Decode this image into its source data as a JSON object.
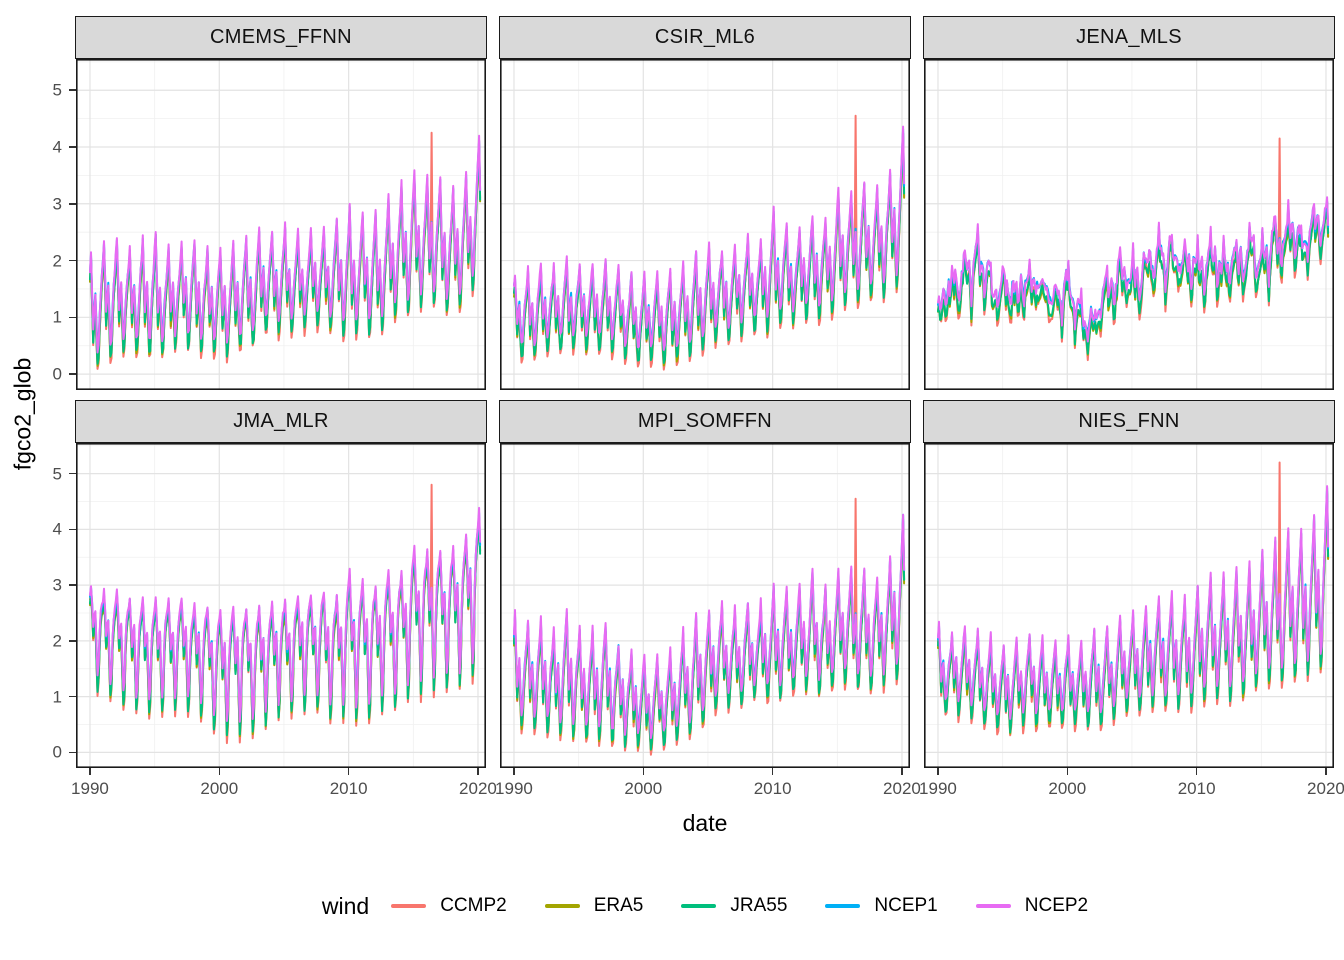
{
  "figure": {
    "y_axis_title": "fgco2_glob",
    "x_axis_title": "date",
    "legend_title": "wind"
  },
  "axes": {
    "x_ticks": [
      1990,
      2000,
      2010,
      2020
    ],
    "x_minor": [
      1995,
      2005,
      2015
    ],
    "y_ticks": [
      0,
      1,
      2,
      3,
      4,
      5
    ],
    "y_minor": [
      0.5,
      1.5,
      2.5,
      3.5,
      4.5,
      5.5
    ],
    "x_range": [
      1988.92,
      2020.62
    ],
    "y_range": [
      -0.28,
      5.55
    ]
  },
  "colors": {
    "background": "#FFFFFF",
    "panel_background": "#FFFFFF",
    "grid_major": "#E3E3E3",
    "grid_minor": "#F0F0F0",
    "panel_border": "#1A1A1A",
    "strip_fill": "#D9D9D9",
    "tick_text": "#4D4D4D",
    "axis_title_text": "#000000"
  },
  "legend": {
    "items": [
      {
        "label": "CCMP2",
        "color": "#F8766D"
      },
      {
        "label": "ERA5",
        "color": "#A3A500"
      },
      {
        "label": "JRA55",
        "color": "#00BF7D"
      },
      {
        "label": "NCEP1",
        "color": "#00B0F6"
      },
      {
        "label": "NCEP2",
        "color": "#E76BF3"
      }
    ]
  },
  "chart_data": {
    "type": "line",
    "x_unit": "year, monthly resolution 1990-2020",
    "years": [
      1990,
      1991,
      1992,
      1993,
      1994,
      1995,
      1996,
      1997,
      1998,
      1999,
      2000,
      2001,
      2002,
      2003,
      2004,
      2005,
      2006,
      2007,
      2008,
      2009,
      2010,
      2011,
      2012,
      2013,
      2014,
      2015,
      2016,
      2017,
      2018,
      2019,
      2020
    ],
    "winds": [
      {
        "name": "CCMP2",
        "color": "#F8766D",
        "peak_offset": -0.1,
        "trough_offset": -0.33
      },
      {
        "name": "ERA5",
        "color": "#A3A500",
        "peak_offset": -0.18,
        "trough_offset": -0.24
      },
      {
        "name": "JRA55",
        "color": "#00BF7D",
        "peak_offset": -0.14,
        "trough_offset": -0.23
      },
      {
        "name": "NCEP1",
        "color": "#00B0F6",
        "peak_offset": -0.06,
        "trough_offset": 0.08
      },
      {
        "name": "NCEP2",
        "color": "#E76BF3",
        "peak_offset": 0.0,
        "trough_offset": 0.0
      }
    ],
    "ccmp2_spike_x": 2016.42,
    "facets": [
      {
        "title": "CMEMS_FFNN",
        "seasonal_max": [
          2.1,
          2.4,
          2.45,
          2.3,
          2.4,
          2.5,
          2.3,
          2.35,
          2.4,
          2.3,
          2.3,
          2.3,
          2.5,
          2.5,
          2.55,
          2.6,
          2.5,
          2.55,
          2.6,
          2.7,
          3.0,
          2.9,
          2.8,
          3.1,
          3.3,
          3.6,
          3.5,
          3.5,
          3.3,
          3.5,
          4.15
        ],
        "seasonal_min": [
          0.25,
          0.5,
          0.6,
          0.7,
          0.6,
          0.5,
          0.6,
          0.8,
          0.7,
          0.6,
          0.55,
          0.6,
          0.7,
          0.9,
          1.0,
          1.0,
          1.0,
          1.1,
          1.1,
          1.0,
          0.9,
          1.0,
          0.85,
          1.1,
          1.3,
          1.4,
          1.5,
          1.4,
          1.3,
          1.5,
          1.8
        ],
        "ccmp2_spike_value": 4.25,
        "noise": 0.05,
        "pattern": [
          0.82,
          1.0,
          0.62,
          0.28,
          0.42,
          0.55,
          0.25,
          0.0,
          0.06,
          0.3,
          0.5,
          0.66
        ]
      },
      {
        "title": "CSIR_ML6",
        "seasonal_max": [
          1.75,
          1.9,
          2.0,
          1.95,
          2.1,
          2.0,
          1.95,
          2.0,
          1.9,
          1.8,
          1.75,
          1.8,
          1.9,
          2.0,
          2.1,
          2.3,
          2.2,
          2.3,
          2.5,
          2.4,
          2.9,
          2.7,
          2.6,
          2.8,
          2.7,
          3.3,
          3.3,
          3.4,
          3.3,
          3.6,
          4.35
        ],
        "seasonal_min": [
          0.5,
          0.55,
          0.6,
          0.65,
          0.7,
          0.6,
          0.65,
          0.7,
          0.6,
          0.5,
          0.45,
          0.5,
          0.35,
          0.5,
          0.6,
          0.7,
          0.8,
          0.9,
          1.0,
          1.0,
          1.0,
          1.1,
          1.2,
          1.2,
          1.3,
          1.4,
          1.5,
          1.5,
          1.6,
          1.7,
          1.8
        ],
        "ccmp2_spike_value": 4.55,
        "noise": 0.05,
        "pattern": [
          0.82,
          1.0,
          0.62,
          0.28,
          0.42,
          0.55,
          0.25,
          0.0,
          0.06,
          0.3,
          0.5,
          0.66
        ]
      },
      {
        "title": "JENA_MLS",
        "seasonal_max": [
          1.4,
          1.9,
          2.2,
          2.75,
          2.0,
          1.9,
          1.7,
          1.9,
          2.0,
          1.6,
          1.9,
          1.6,
          1.1,
          2.0,
          2.2,
          2.1,
          2.2,
          2.4,
          2.6,
          2.3,
          2.4,
          2.6,
          2.3,
          2.4,
          2.5,
          2.6,
          2.8,
          3.1,
          2.7,
          3.1,
          3.05
        ],
        "seasonal_min": [
          0.85,
          1.0,
          1.3,
          1.6,
          1.3,
          1.2,
          1.1,
          1.2,
          1.3,
          1.0,
          1.1,
          0.9,
          0.65,
          1.2,
          1.5,
          1.4,
          1.5,
          1.6,
          1.8,
          1.6,
          1.5,
          1.7,
          1.6,
          1.7,
          1.8,
          1.8,
          1.9,
          2.1,
          1.9,
          2.1,
          2.3
        ],
        "ccmp2_spike_value": 4.15,
        "noise": 0.16,
        "pattern": [
          0.75,
          1.0,
          0.55,
          0.4,
          0.52,
          0.6,
          0.3,
          0.0,
          0.15,
          0.35,
          0.5,
          0.6
        ]
      },
      {
        "title": "JMA_MLR",
        "seasonal_max": [
          3.0,
          2.9,
          2.85,
          2.8,
          2.75,
          2.8,
          2.7,
          2.75,
          2.7,
          2.65,
          2.6,
          2.65,
          2.7,
          2.6,
          2.7,
          2.75,
          2.8,
          2.8,
          2.9,
          2.8,
          3.2,
          3.1,
          3.0,
          3.3,
          3.2,
          3.7,
          3.6,
          3.7,
          3.6,
          3.9,
          4.4
        ],
        "seasonal_min": [
          1.5,
          1.3,
          1.2,
          1.1,
          1.0,
          0.9,
          1.0,
          1.0,
          0.9,
          0.8,
          0.6,
          0.45,
          0.6,
          0.7,
          0.8,
          0.9,
          1.0,
          1.0,
          0.9,
          0.8,
          0.9,
          0.85,
          0.9,
          1.0,
          1.1,
          1.3,
          1.35,
          1.4,
          1.45,
          1.5,
          1.6
        ],
        "ccmp2_spike_value": 4.8,
        "noise": 0.05,
        "pattern": [
          0.9,
          1.0,
          0.78,
          0.5,
          0.62,
          0.68,
          0.32,
          0.0,
          0.12,
          0.5,
          0.72,
          0.84
        ]
      },
      {
        "title": "MPI_SOMFFN",
        "seasonal_max": [
          2.5,
          2.4,
          2.45,
          2.2,
          2.6,
          2.3,
          2.3,
          2.4,
          2.0,
          1.9,
          1.8,
          1.75,
          1.9,
          2.2,
          2.5,
          2.5,
          2.7,
          2.6,
          2.8,
          2.7,
          3.0,
          2.9,
          3.0,
          3.2,
          3.0,
          3.3,
          3.3,
          3.3,
          3.1,
          3.4,
          4.3
        ],
        "seasonal_min": [
          0.6,
          0.7,
          0.6,
          0.55,
          0.6,
          0.5,
          0.45,
          0.5,
          0.4,
          0.35,
          0.3,
          0.25,
          0.4,
          0.5,
          0.6,
          0.8,
          1.0,
          1.1,
          1.2,
          1.3,
          1.2,
          1.3,
          1.3,
          1.4,
          1.3,
          1.5,
          1.5,
          1.4,
          1.4,
          1.5,
          1.5
        ],
        "ccmp2_spike_value": 4.55,
        "noise": 0.06,
        "pattern": [
          0.82,
          1.0,
          0.62,
          0.28,
          0.42,
          0.55,
          0.25,
          0.0,
          0.06,
          0.3,
          0.5,
          0.66
        ]
      },
      {
        "title": "NIES_FNN",
        "seasonal_max": [
          2.35,
          2.2,
          2.3,
          2.2,
          2.1,
          2.0,
          2.1,
          2.2,
          2.1,
          2.0,
          2.1,
          2.0,
          2.2,
          2.3,
          2.4,
          2.5,
          2.6,
          2.8,
          2.9,
          2.8,
          3.0,
          3.3,
          3.2,
          3.3,
          3.4,
          3.6,
          3.8,
          4.1,
          4.0,
          4.3,
          4.85
        ],
        "seasonal_min": [
          0.95,
          1.0,
          0.9,
          0.85,
          0.7,
          0.65,
          0.7,
          0.8,
          0.75,
          0.7,
          0.75,
          0.7,
          0.65,
          0.8,
          0.9,
          1.0,
          1.0,
          1.1,
          1.1,
          1.0,
          1.1,
          1.2,
          1.2,
          1.3,
          1.3,
          1.4,
          1.5,
          1.5,
          1.6,
          1.7,
          1.8
        ],
        "ccmp2_spike_value": 5.2,
        "noise": 0.05,
        "pattern": [
          0.82,
          1.0,
          0.62,
          0.28,
          0.42,
          0.55,
          0.25,
          0.0,
          0.06,
          0.3,
          0.5,
          0.66
        ]
      }
    ]
  }
}
